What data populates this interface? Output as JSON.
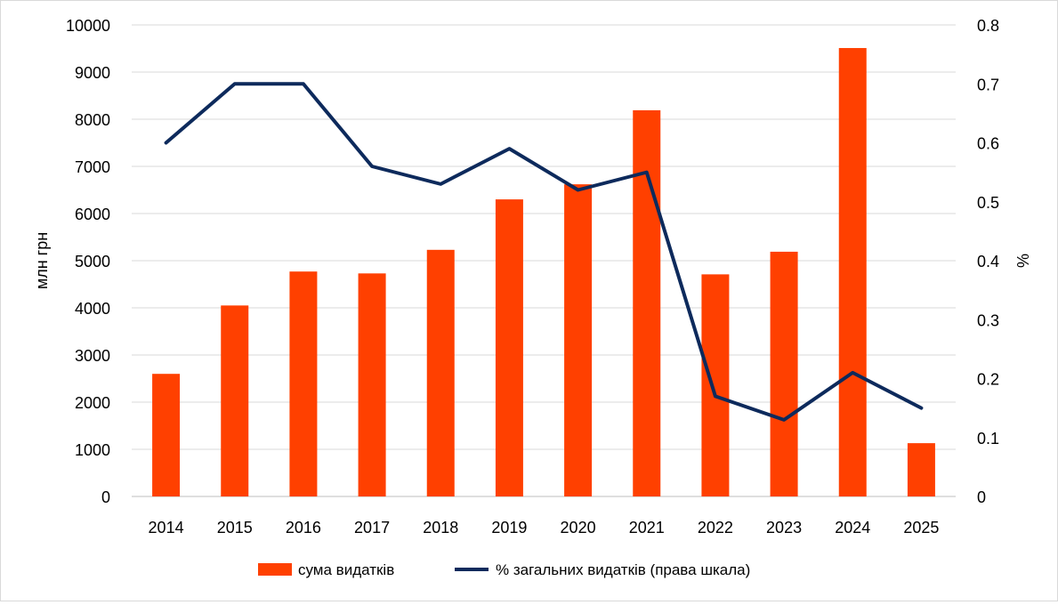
{
  "chart_data": {
    "type": "bar",
    "categories": [
      "2014",
      "2015",
      "2016",
      "2017",
      "2018",
      "2019",
      "2020",
      "2021",
      "2022",
      "2023",
      "2024",
      "2025"
    ],
    "series": [
      {
        "name": "сума видатків",
        "type": "bar",
        "axis": "left",
        "color": "#FF4000",
        "values": [
          2600,
          4050,
          4770,
          4730,
          5230,
          6300,
          6620,
          8190,
          4710,
          5190,
          9510,
          1130
        ]
      },
      {
        "name": "% загальних видатків (права шкала)",
        "type": "line",
        "axis": "right",
        "color": "#0D2A5C",
        "values": [
          0.6,
          0.7,
          0.7,
          0.56,
          0.53,
          0.59,
          0.52,
          0.55,
          0.17,
          0.13,
          0.21,
          0.15
        ]
      }
    ],
    "ylabel": "млн грн",
    "y2label": "%",
    "ylim": [
      0,
      10000
    ],
    "y2lim": [
      0,
      0.8
    ],
    "yticks": [
      "0",
      "1000",
      "2000",
      "3000",
      "4000",
      "5000",
      "6000",
      "7000",
      "8000",
      "9000",
      "10000"
    ],
    "y2ticks": [
      "0",
      "0.1",
      "0.2",
      "0.3",
      "0.4",
      "0.5",
      "0.6",
      "0.7",
      "0.8"
    ],
    "grid": true,
    "legend_position": "bottom"
  }
}
